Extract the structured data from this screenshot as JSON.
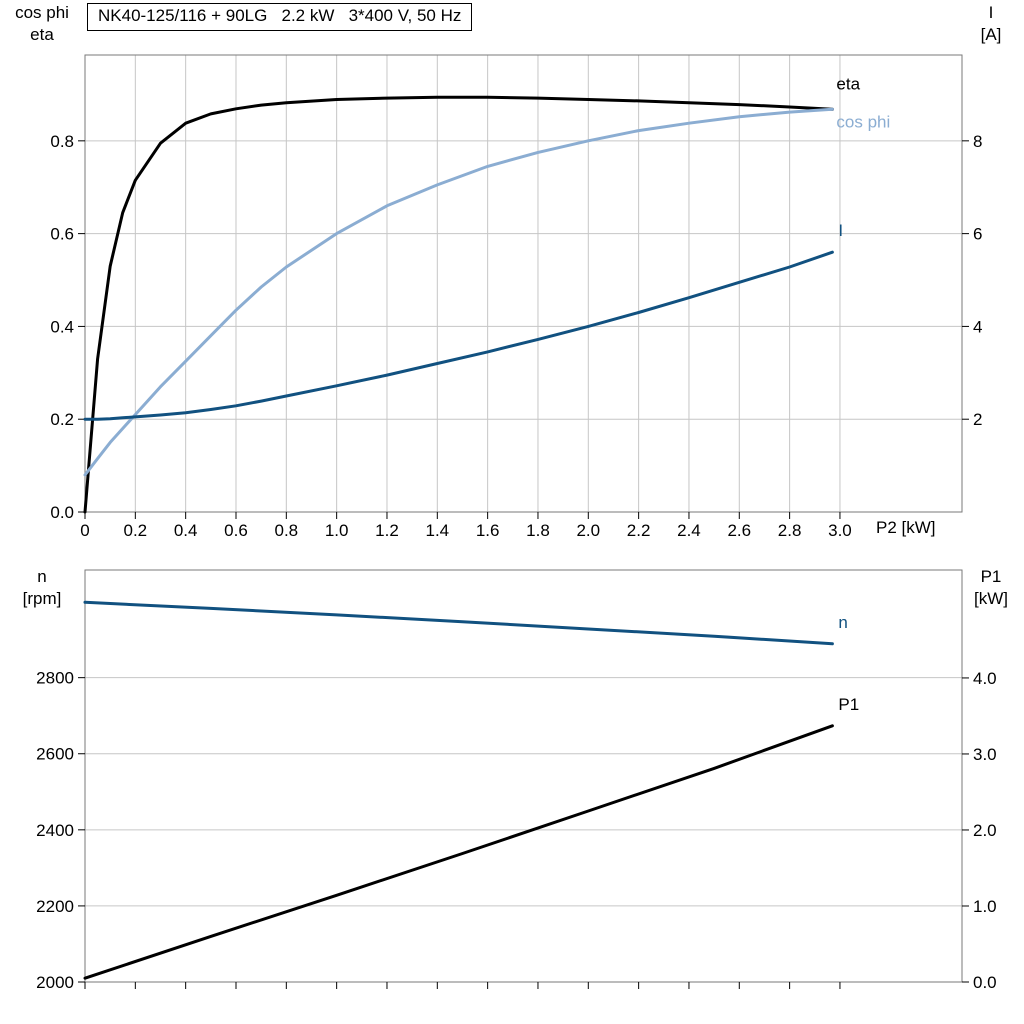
{
  "page": {
    "background": "#ffffff"
  },
  "header": {
    "title_box": "NK40-125/116 + 90LG   2.2 kW   3*400 V, 50 Hz"
  },
  "axis_corner_labels": {
    "top_left_line1": "cos phi",
    "top_left_line2": "eta",
    "top_right_line1": "I",
    "top_right_line2": "[A]",
    "x_axis_label": "P2 [kW]",
    "bottom_left_line1": "n",
    "bottom_left_line2": "[rpm]",
    "bottom_right_line1": "P1",
    "bottom_right_line2": "[kW]"
  },
  "colors": {
    "black": "#000000",
    "light_blue": "#8badd2",
    "dark_blue": "#115180",
    "grid": "#c6c6c6",
    "border": "#7a7a7a",
    "tick": "#000000"
  },
  "chart_data": [
    {
      "type": "line",
      "title": "NK40-125/116 + 90LG   2.2 kW   3*400 V, 50 Hz",
      "grid": "both",
      "x_axis": {
        "label": "P2 [kW]",
        "min": 0,
        "max": 3.485,
        "ticks": [
          0,
          0.2,
          0.4,
          0.6,
          0.8,
          1,
          1.2,
          1.4,
          1.6,
          1.8,
          2,
          2.2,
          2.4,
          2.6,
          2.8,
          3
        ],
        "tick_labels": [
          "0",
          "0.2",
          "0.4",
          "0.6",
          "0.8",
          "1.0",
          "1.2",
          "1.4",
          "1.6",
          "1.8",
          "2.0",
          "2.2",
          "2.4",
          "2.6",
          "2.8",
          "3.0"
        ]
      },
      "y_left": {
        "label": "cos phi / eta",
        "min": 0,
        "max": 0.985,
        "ticks": [
          0,
          0.2,
          0.4,
          0.6,
          0.8
        ],
        "tick_labels": [
          "0.0",
          "0.2",
          "0.4",
          "0.6",
          "0.8"
        ]
      },
      "y_right": {
        "label": "I [A]",
        "min": 0,
        "max": 9.85,
        "ticks": [
          2,
          4,
          6,
          8
        ],
        "tick_labels": [
          "2",
          "4",
          "6",
          "8"
        ]
      },
      "series": [
        {
          "name": "eta",
          "label": "eta",
          "axis": "left",
          "color": "#000000",
          "width": 3,
          "x": [
            0,
            0.05,
            0.1,
            0.15,
            0.2,
            0.3,
            0.4,
            0.5,
            0.6,
            0.7,
            0.8,
            1.0,
            1.2,
            1.4,
            1.6,
            1.8,
            2.0,
            2.2,
            2.4,
            2.6,
            2.8,
            2.97
          ],
          "y": [
            0,
            0.33,
            0.53,
            0.645,
            0.715,
            0.795,
            0.838,
            0.858,
            0.869,
            0.877,
            0.882,
            0.889,
            0.892,
            0.894,
            0.894,
            0.892,
            0.889,
            0.886,
            0.882,
            0.878,
            0.873,
            0.868
          ]
        },
        {
          "name": "cos phi",
          "label": "cos phi",
          "axis": "left",
          "color": "#8badd2",
          "width": 3,
          "x": [
            0,
            0.05,
            0.1,
            0.15,
            0.2,
            0.3,
            0.4,
            0.5,
            0.6,
            0.7,
            0.8,
            1.0,
            1.2,
            1.4,
            1.6,
            1.8,
            2.0,
            2.2,
            2.4,
            2.6,
            2.8,
            2.97
          ],
          "y": [
            0.08,
            0.115,
            0.15,
            0.18,
            0.21,
            0.27,
            0.325,
            0.38,
            0.435,
            0.485,
            0.528,
            0.6,
            0.66,
            0.705,
            0.745,
            0.775,
            0.8,
            0.822,
            0.838,
            0.852,
            0.862,
            0.868
          ]
        },
        {
          "name": "I",
          "label": "I",
          "axis": "right",
          "color": "#115180",
          "width": 3,
          "x": [
            0,
            0.05,
            0.1,
            0.15,
            0.2,
            0.3,
            0.4,
            0.5,
            0.6,
            0.7,
            0.8,
            1.0,
            1.2,
            1.4,
            1.6,
            1.8,
            2.0,
            2.2,
            2.4,
            2.6,
            2.8,
            2.97
          ],
          "y": [
            2.0,
            2.0,
            2.01,
            2.03,
            2.05,
            2.09,
            2.14,
            2.21,
            2.29,
            2.39,
            2.5,
            2.72,
            2.95,
            3.2,
            3.45,
            3.72,
            4.0,
            4.3,
            4.62,
            4.95,
            5.28,
            5.6
          ]
        }
      ]
    },
    {
      "type": "line",
      "title": "",
      "grid": "horizontal",
      "x_axis": {
        "label": "",
        "min": 0,
        "max": 3.485,
        "ticks": [
          0,
          0.2,
          0.4,
          0.6,
          0.8,
          1,
          1.2,
          1.4,
          1.6,
          1.8,
          2,
          2.2,
          2.4,
          2.6,
          2.8,
          3
        ],
        "tick_labels": []
      },
      "y_left": {
        "label": "n [rpm]",
        "min": 2000,
        "max": 3083,
        "ticks": [
          2000,
          2200,
          2400,
          2600,
          2800
        ],
        "tick_labels": [
          "2000",
          "2200",
          "2400",
          "2600",
          "2800"
        ]
      },
      "y_right": {
        "label": "P1 [kW]",
        "min": 0,
        "max": 5.42,
        "ticks": [
          0,
          1,
          2,
          3,
          4
        ],
        "tick_labels": [
          "0.0",
          "1.0",
          "2.0",
          "3.0",
          "4.0"
        ]
      },
      "series": [
        {
          "name": "n",
          "label": "n",
          "axis": "left",
          "color": "#115180",
          "width": 3,
          "x": [
            0,
            0.5,
            1.0,
            1.5,
            2.0,
            2.5,
            2.97
          ],
          "y": [
            2998,
            2982,
            2965,
            2947,
            2928,
            2909,
            2889
          ]
        },
        {
          "name": "P1",
          "label": "P1",
          "axis": "right",
          "color": "#000000",
          "width": 3,
          "x": [
            0,
            0.5,
            1.0,
            1.5,
            2.0,
            2.5,
            2.97
          ],
          "y": [
            0.05,
            0.6,
            1.14,
            1.69,
            2.25,
            2.81,
            3.37
          ]
        }
      ]
    }
  ]
}
